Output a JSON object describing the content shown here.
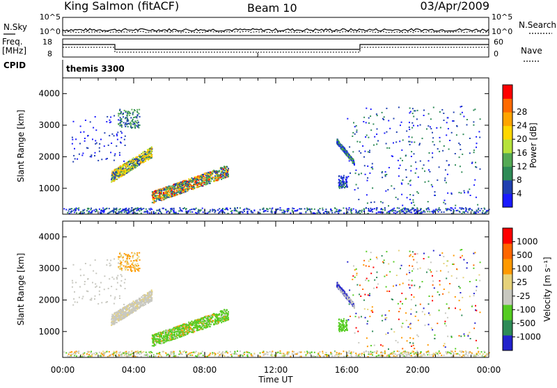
{
  "header": {
    "site": "King Salmon (fitACF)",
    "beam": "Beam 10",
    "date": "03/Apr/2009"
  },
  "noise_panel": {
    "left_label": "N.Sky",
    "right_label": "N.Search",
    "left_ticks": [
      "10^5",
      "10^0"
    ],
    "right_ticks": [
      "10^5",
      "10^0"
    ]
  },
  "freq_panel": {
    "left_label_line1": "Freq.",
    "left_label_line2": "[MHz]",
    "left_ticks": [
      "18",
      "8"
    ],
    "right_label": "Nave",
    "right_ticks": [
      "60",
      "0"
    ]
  },
  "cpid": {
    "label": "CPID",
    "value": "themis 3300"
  },
  "colors": {
    "power": [
      "#1a1aff",
      "#2040b0",
      "#2e8b57",
      "#55aa55",
      "#b6e23c",
      "#ffd700",
      "#ffa500",
      "#ff6a00",
      "#ff0000"
    ],
    "velocity": [
      "#2222cc",
      "#2e8b57",
      "#55cc22",
      "#c8c8c0",
      "#e6d27a",
      "#ff9900",
      "#ff6600",
      "#ff0000"
    ]
  },
  "chart_data": [
    {
      "type": "heatmap",
      "name": "power",
      "ylabel": "Slant Range [km]",
      "x_ticks": [
        "00:00",
        "04:00",
        "08:00",
        "12:00",
        "16:00",
        "20:00",
        "00:00"
      ],
      "y_ticks": [
        "1000",
        "2000",
        "3000",
        "4000"
      ],
      "xlim_hours": [
        0,
        24
      ],
      "ylim_km": [
        180,
        4500
      ],
      "colorbar": {
        "label": "Power [dB]",
        "ticks": [
          "4",
          "8",
          "12",
          "16",
          "20",
          "24",
          "28"
        ]
      }
    },
    {
      "type": "heatmap",
      "name": "velocity",
      "xlabel": "Time UT",
      "ylabel": "Slant Range [km]",
      "x_ticks": [
        "00:00",
        "04:00",
        "08:00",
        "12:00",
        "16:00",
        "20:00",
        "00:00"
      ],
      "y_ticks": [
        "1000",
        "2000",
        "3000",
        "4000"
      ],
      "xlim_hours": [
        0,
        24
      ],
      "ylim_km": [
        180,
        4500
      ],
      "colorbar": {
        "label": "Velocity [m s⁻¹]",
        "ticks": [
          "1000",
          "500",
          "100",
          "25",
          "-25",
          "-100",
          "-500",
          "-1000"
        ]
      }
    }
  ]
}
